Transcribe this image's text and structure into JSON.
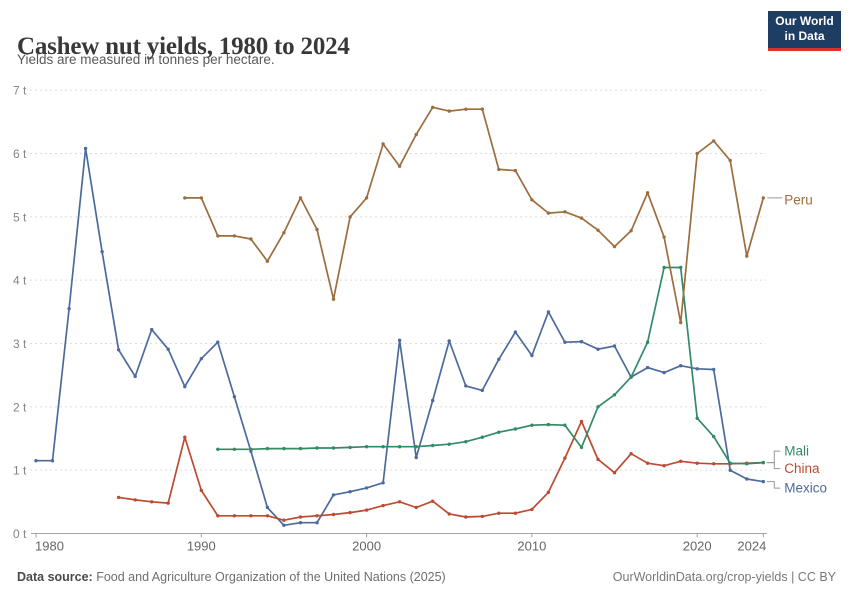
{
  "header": {
    "title": "Cashew nut yields, 1980 to 2024",
    "subtitle": "Yields are measured in tonnes per hectare.",
    "logo": {
      "line1": "Our World",
      "line2": "in Data",
      "bg_color": "#1d3d63",
      "bar_color": "#dc3327"
    }
  },
  "footer": {
    "source_label": "Data source:",
    "source_text": " Food and Agriculture Organization of the United Nations (2025)",
    "right_text": "OurWorldinData.org/crop-yields | CC BY"
  },
  "chart_data": {
    "type": "line",
    "title": "Cashew nut yields, 1980 to 2024",
    "ylabel": "tonnes per hectare",
    "x_domain": [
      1980,
      2024
    ],
    "y_domain": [
      0,
      7
    ],
    "y_ticks": [
      "0 t",
      "1 t",
      "2 t",
      "3 t",
      "4 t",
      "5 t",
      "6 t",
      "7 t"
    ],
    "x_ticks": [
      1980,
      1990,
      2000,
      2010,
      2020,
      2024
    ],
    "grid": "horizontal-dashed",
    "legend_position": "right-end-labels",
    "grid_color": "#dcdcdc",
    "axis_color": "#a3a3a3",
    "xtick_label_color": "#666666",
    "ytick_label_color": "#858585",
    "connector_color": "#999999",
    "series": [
      {
        "name": "Peru",
        "color": "#9C6D3E",
        "start_year": 1989,
        "values": [
          5.3,
          5.3,
          4.7,
          4.7,
          4.65,
          4.3,
          4.75,
          5.3,
          4.8,
          3.7,
          5.0,
          5.3,
          6.15,
          5.8,
          6.3,
          6.73,
          6.67,
          6.7,
          6.7,
          5.75,
          5.73,
          5.27,
          5.06,
          5.08,
          4.98,
          4.79,
          4.53,
          4.78,
          5.38,
          4.68,
          3.33,
          6.0,
          6.2,
          5.89,
          4.38,
          5.3
        ]
      },
      {
        "name": "Mali",
        "color": "#338B66",
        "start_year": 1991,
        "values": [
          1.33,
          1.33,
          1.33,
          1.34,
          1.34,
          1.34,
          1.35,
          1.35,
          1.36,
          1.37,
          1.37,
          1.37,
          1.37,
          1.39,
          1.41,
          1.45,
          1.52,
          1.6,
          1.65,
          1.71,
          1.72,
          1.71,
          1.36,
          2.0,
          2.19,
          2.47,
          3.02,
          4.2,
          4.2,
          1.82,
          1.53,
          1.11,
          1.1,
          1.12
        ]
      },
      {
        "name": "China",
        "color": "#BC4B32",
        "start_year": 1985,
        "values": [
          0.57,
          0.53,
          0.5,
          0.48,
          1.52,
          0.68,
          0.28,
          0.28,
          0.28,
          0.28,
          0.21,
          0.26,
          0.28,
          0.3,
          0.33,
          0.37,
          0.44,
          0.5,
          0.41,
          0.51,
          0.31,
          0.26,
          0.27,
          0.32,
          0.32,
          0.38,
          0.65,
          1.19,
          1.77,
          1.17,
          0.96,
          1.26,
          1.11,
          1.07,
          1.14,
          1.11,
          1.1,
          1.1,
          1.11,
          1.12
        ]
      },
      {
        "name": "Mexico",
        "color": "#4C6A9C",
        "start_year": 1980,
        "values": [
          1.15,
          1.15,
          3.55,
          6.08,
          4.45,
          2.9,
          2.48,
          3.22,
          2.91,
          2.32,
          2.76,
          3.02,
          2.16,
          1.3,
          0.41,
          0.13,
          0.17,
          0.17,
          0.61,
          0.66,
          0.72,
          0.8,
          3.05,
          1.2,
          2.1,
          3.04,
          2.33,
          2.26,
          2.75,
          3.18,
          2.81,
          3.5,
          3.02,
          3.03,
          2.91,
          2.96,
          2.47,
          2.62,
          2.54,
          2.65,
          2.6,
          2.59,
          1.0,
          0.86,
          0.82
        ]
      }
    ]
  }
}
